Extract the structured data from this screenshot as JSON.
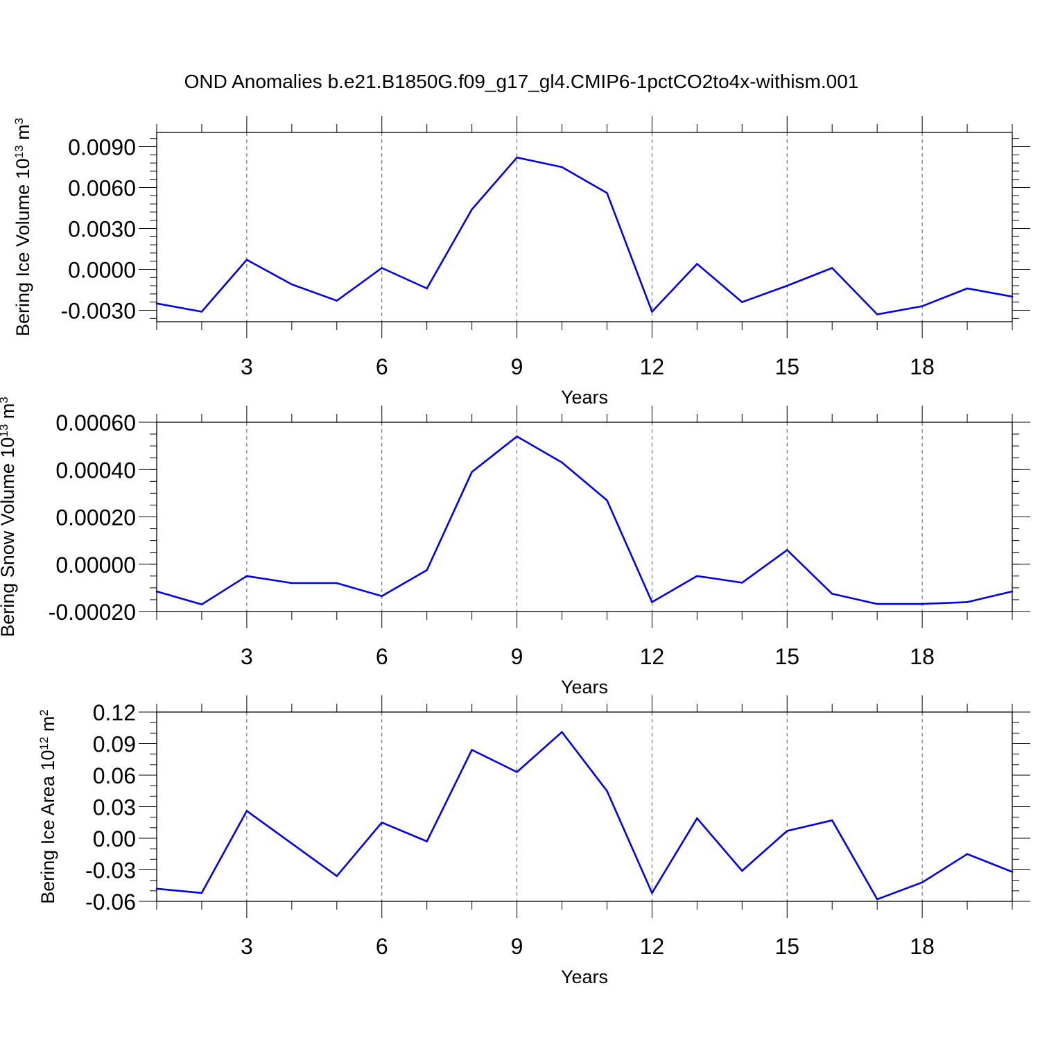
{
  "title": "OND Anomalies b.e21.B1850G.f09_g17_gl4.CMIP6-1pctCO2to4x-withism.001",
  "chart_data": [
    {
      "type": "line",
      "title": "OND Anomalies b.e21.B1850G.f09_g17_gl4.CMIP6-1pctCO2to4x-withism.001",
      "ylabel": {
        "main": "Bering Ice Volume 10",
        "sup": "13",
        "unit": " m",
        "unit_sup": "3"
      },
      "xlabel": "Years",
      "xlim": [
        1,
        20
      ],
      "x_ticks": [
        3,
        6,
        9,
        12,
        15,
        18
      ],
      "x_tick_labels": [
        "3",
        "6",
        "9",
        "12",
        "15",
        "18"
      ],
      "ylim": [
        -0.0039,
        0.0101
      ],
      "y_ticks": [
        -0.003,
        0.0,
        0.003,
        0.006,
        0.009
      ],
      "y_tick_labels": [
        "-0.0030",
        "0.0000",
        "0.0030",
        "0.0060",
        "0.0090"
      ],
      "y_minor_step": 0.0006,
      "grid": "vertical dashed at major x ticks",
      "line_color": "#0000ee",
      "x": [
        1,
        2,
        3,
        4,
        5,
        6,
        7,
        8,
        9,
        10,
        11,
        12,
        13,
        14,
        15,
        16,
        17,
        18,
        19,
        20
      ],
      "values": [
        -0.0025,
        -0.0031,
        0.0007,
        -0.0011,
        -0.0023,
        0.0001,
        -0.0014,
        0.0044,
        0.0082,
        0.0075,
        0.0056,
        -0.0031,
        0.0004,
        -0.0024,
        -0.0012,
        0.0001,
        -0.0033,
        -0.0027,
        -0.0014,
        -0.002
      ]
    },
    {
      "type": "line",
      "ylabel": {
        "main": "Bering Snow Volume 10",
        "sup": "13",
        "unit": " m",
        "unit_sup": "3"
      },
      "xlabel": "Years",
      "xlim": [
        1,
        20
      ],
      "x_ticks": [
        3,
        6,
        9,
        12,
        15,
        18
      ],
      "x_tick_labels": [
        "3",
        "6",
        "9",
        "12",
        "15",
        "18"
      ],
      "ylim": [
        -0.0002,
        0.0006
      ],
      "y_ticks": [
        -0.0002,
        0.0,
        0.0002,
        0.0004,
        0.0006
      ],
      "y_tick_labels": [
        "-0.00020",
        "0.00000",
        "0.00020",
        "0.00040",
        "0.00060"
      ],
      "y_minor_step": 5e-05,
      "grid": "vertical dashed at major x ticks",
      "line_color": "#0000ee",
      "x": [
        1,
        2,
        3,
        4,
        5,
        6,
        7,
        8,
        9,
        10,
        11,
        12,
        13,
        14,
        15,
        16,
        17,
        18,
        19,
        20
      ],
      "values": [
        -0.000115,
        -0.00017,
        -5e-05,
        -8e-05,
        -8e-05,
        -0.000135,
        -2.5e-05,
        0.00039,
        0.00054,
        0.00043,
        0.00027,
        -0.00016,
        -5e-05,
        -7.8e-05,
        6e-05,
        -0.000125,
        -0.000168,
        -0.000168,
        -0.00016,
        -0.000115
      ]
    },
    {
      "type": "line",
      "ylabel": {
        "main": "Bering Ice Area 10",
        "sup": "12",
        "unit": " m",
        "unit_sup": "2"
      },
      "xlabel": "Years",
      "xlim": [
        1,
        20
      ],
      "x_ticks": [
        3,
        6,
        9,
        12,
        15,
        18
      ],
      "x_tick_labels": [
        "3",
        "6",
        "9",
        "12",
        "15",
        "18"
      ],
      "ylim": [
        -0.06,
        0.12
      ],
      "y_ticks": [
        -0.06,
        -0.03,
        0.0,
        0.03,
        0.06,
        0.09,
        0.12
      ],
      "y_tick_labels": [
        "-0.06",
        "-0.03",
        "0.00",
        "0.03",
        "0.06",
        "0.09",
        "0.12"
      ],
      "y_minor_step": 0.01,
      "grid": "vertical dashed at major x ticks",
      "line_color": "#0000ee",
      "x": [
        1,
        2,
        3,
        4,
        5,
        6,
        7,
        8,
        9,
        10,
        11,
        12,
        13,
        14,
        15,
        16,
        17,
        18,
        19,
        20
      ],
      "values": [
        -0.048,
        -0.052,
        0.026,
        -0.005,
        -0.036,
        0.015,
        -0.003,
        0.084,
        0.063,
        0.101,
        0.045,
        -0.052,
        0.019,
        -0.031,
        0.007,
        0.017,
        -0.058,
        -0.042,
        -0.015,
        -0.032
      ]
    }
  ]
}
